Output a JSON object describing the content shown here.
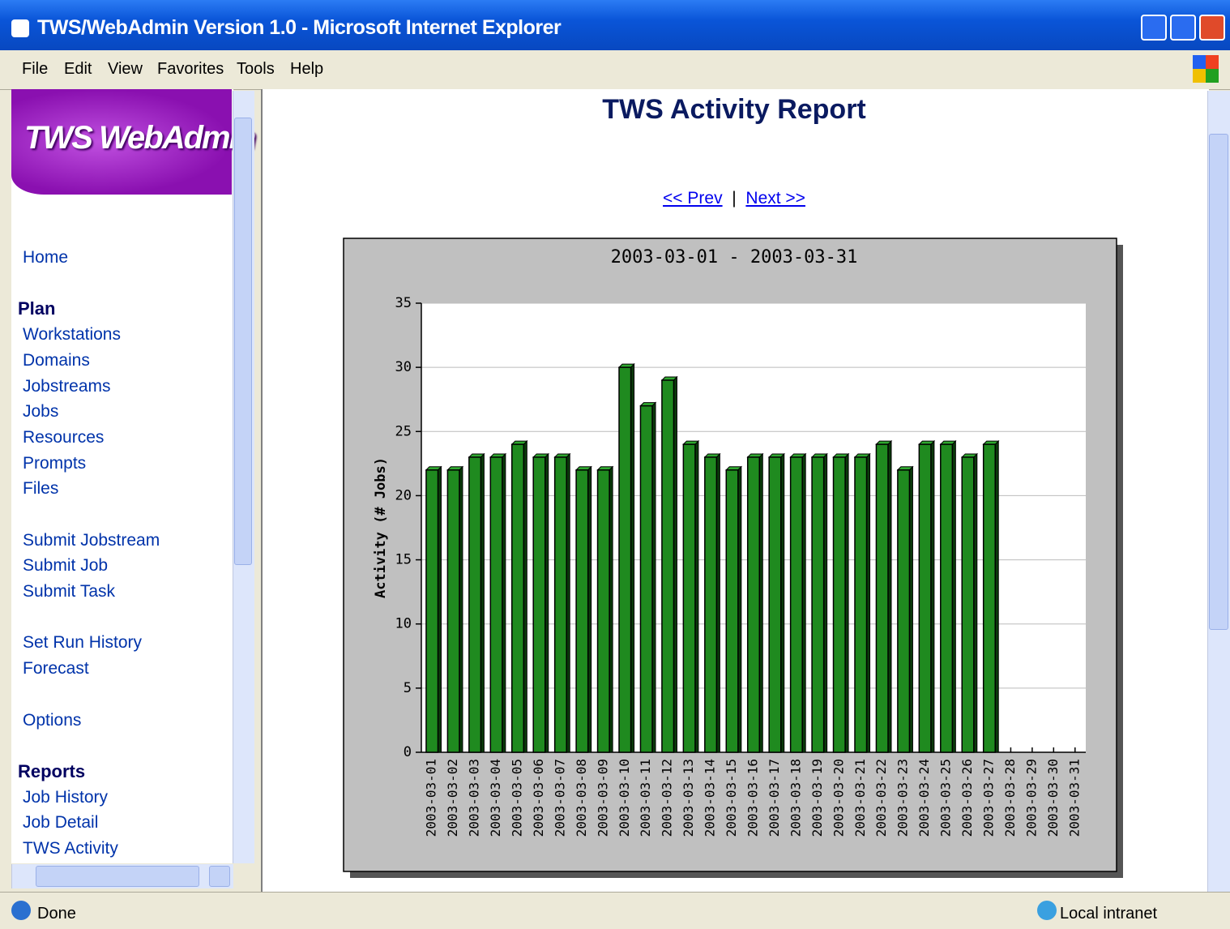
{
  "window": {
    "title": "TWS/WebAdmin Version 1.0 - Microsoft Internet Explorer"
  },
  "menu": [
    "File",
    "Edit",
    "View",
    "Favorites",
    "Tools",
    "Help"
  ],
  "sidebar": {
    "logo": "TWS WebAdmin",
    "items": [
      "Home",
      "Plan",
      "Workstations",
      "Domains",
      "Jobstreams",
      "Jobs",
      "Resources",
      "Prompts",
      "Files",
      "Submit Jobstream",
      "Submit Job",
      "Submit Task",
      "Set Run History",
      "Forecast",
      "Options",
      "Reports",
      "Job History",
      "Job Detail",
      "TWS Activity"
    ]
  },
  "heading": "TWS Activity Report",
  "nav": {
    "prev": "<< Prev",
    "separator": "|",
    "next": "Next >>"
  },
  "status": {
    "text": "Done",
    "zone": "Local intranet"
  },
  "chart_data": {
    "type": "bar",
    "title": "2003-03-01 - 2003-03-31",
    "y_label": "Activity (# Jobs)",
    "categories": [
      "2003-03-01",
      "2003-03-02",
      "2003-03-03",
      "2003-03-04",
      "2003-03-05",
      "2003-03-06",
      "2003-03-07",
      "2003-03-08",
      "2003-03-09",
      "2003-03-10",
      "2003-03-11",
      "2003-03-12",
      "2003-03-13",
      "2003-03-14",
      "2003-03-15",
      "2003-03-16",
      "2003-03-17",
      "2003-03-18",
      "2003-03-19",
      "2003-03-20",
      "2003-03-21",
      "2003-03-22",
      "2003-03-23",
      "2003-03-24",
      "2003-03-25",
      "2003-03-26",
      "2003-03-27",
      "2003-03-28",
      "2003-03-29",
      "2003-03-30",
      "2003-03-31"
    ],
    "values": [
      22,
      22,
      23,
      23,
      24,
      23,
      23,
      22,
      22,
      30,
      27,
      29,
      24,
      23,
      22,
      23,
      23,
      23,
      23,
      23,
      23,
      24,
      22,
      24,
      24,
      23,
      24,
      0,
      0,
      0,
      0
    ],
    "color": "#1f8a1f",
    "ylim": [
      0,
      35
    ],
    "yticks": [
      0,
      5,
      10,
      15,
      20,
      25,
      30,
      35
    ],
    "grid": true
  }
}
